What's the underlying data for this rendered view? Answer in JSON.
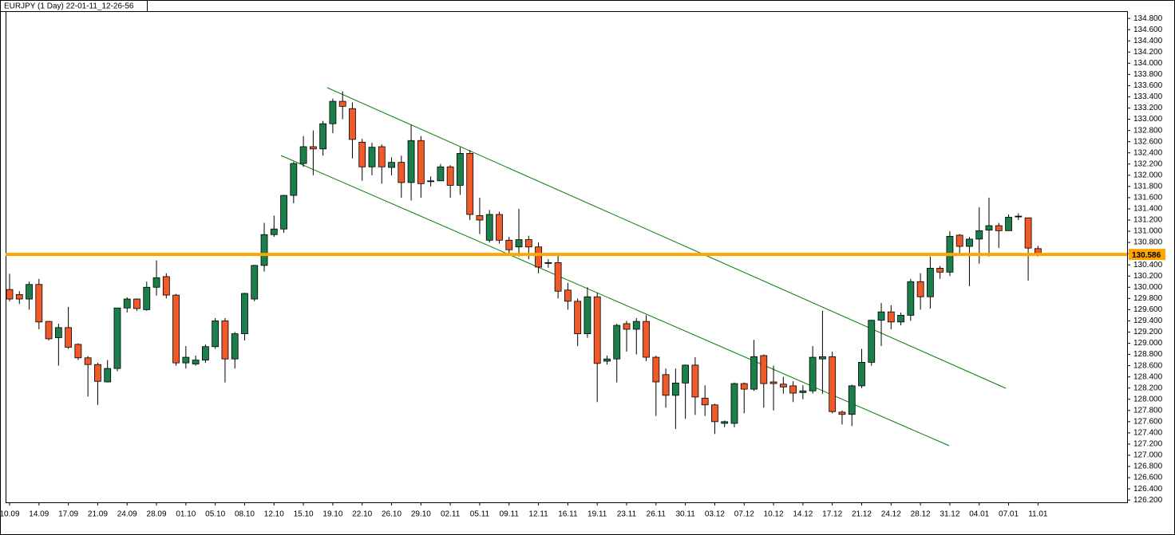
{
  "chart_data": {
    "type": "candlestick",
    "title": "EURJPY (1 Day) 22-01-11_12-26-56",
    "categories": [
      "10.09",
      null,
      null,
      "14.09",
      null,
      null,
      "17.09",
      null,
      null,
      "21.09",
      null,
      null,
      "24.09",
      null,
      null,
      "28.09",
      null,
      null,
      "01.10",
      null,
      null,
      "05.10",
      null,
      null,
      "08.10",
      null,
      null,
      "12.10",
      null,
      null,
      "15.10",
      null,
      null,
      "19.10",
      null,
      null,
      "22.10",
      null,
      null,
      "26.10",
      null,
      null,
      "29.10",
      null,
      null,
      "02.11",
      null,
      null,
      "05.11",
      null,
      null,
      "09.11",
      null,
      null,
      "12.11",
      null,
      null,
      "16.11",
      null,
      null,
      "19.11",
      null,
      null,
      "23.11",
      null,
      null,
      "26.11",
      null,
      null,
      "30.11",
      null,
      null,
      "03.12",
      null,
      null,
      "07.12",
      null,
      null,
      "10.12",
      null,
      null,
      "14.12",
      null,
      null,
      "17.12",
      null,
      null,
      "21.12",
      null,
      null,
      "24.12",
      null,
      null,
      "28.12",
      null,
      null,
      "31.12",
      null,
      null,
      "04.01",
      null,
      null,
      "07.01",
      null,
      null,
      "11.01"
    ],
    "open": [
      129.96,
      129.87,
      129.79,
      130.05,
      129.39,
      129.1,
      129.28,
      128.98,
      128.74,
      128.62,
      128.31,
      128.55,
      129.63,
      129.79,
      129.6,
      130.0,
      130.19,
      129.86,
      128.65,
      128.63,
      128.7,
      128.94,
      129.4,
      128.72,
      129.17,
      129.79,
      130.39,
      130.94,
      131.04,
      131.64,
      132.21,
      132.51,
      132.47,
      132.92,
      133.32,
      133.19,
      132.59,
      132.15,
      132.51,
      132.14,
      132.23,
      131.87,
      132.62,
      131.9,
      131.9,
      132.15,
      131.82,
      132.39,
      131.28,
      130.84,
      131.3,
      130.84,
      130.72,
      130.85,
      130.72,
      130.44,
      130.44,
      129.95,
      129.75,
      129.17,
      129.83,
      128.68,
      128.72,
      129.35,
      129.25,
      129.39,
      128.75,
      128.44,
      128.07,
      128.29,
      128.61,
      128.02,
      127.9,
      127.57,
      127.57,
      128.28,
      128.18,
      128.78,
      128.31,
      128.27,
      128.24,
      128.12,
      128.15,
      128.72,
      128.76,
      127.77,
      127.73,
      128.24,
      128.66,
      129.41,
      129.56,
      129.38,
      129.5,
      130.1,
      129.83,
      130.34,
      130.27,
      130.93,
      130.73,
      130.86,
      131.02,
      131.1,
      131.01,
      131.27,
      131.24,
      130.69
    ],
    "high": [
      130.24,
      129.93,
      130.1,
      130.15,
      129.4,
      129.35,
      129.65,
      129.0,
      128.77,
      128.65,
      128.7,
      129.63,
      129.82,
      129.8,
      130.1,
      130.48,
      130.25,
      129.88,
      128.95,
      128.78,
      128.98,
      129.45,
      129.45,
      129.2,
      129.9,
      130.4,
      131.15,
      131.28,
      131.65,
      132.24,
      132.7,
      132.8,
      132.97,
      133.37,
      133.5,
      133.3,
      132.65,
      132.58,
      132.55,
      132.32,
      132.35,
      132.9,
      132.7,
      131.98,
      132.2,
      132.18,
      132.5,
      132.45,
      131.6,
      131.38,
      131.35,
      130.9,
      131.4,
      130.92,
      130.8,
      130.5,
      130.6,
      130.08,
      129.8,
      130.0,
      129.9,
      128.78,
      129.35,
      129.4,
      129.45,
      129.5,
      128.78,
      128.55,
      128.55,
      128.62,
      128.75,
      128.25,
      127.92,
      127.62,
      128.3,
      128.3,
      129.06,
      128.8,
      128.6,
      128.4,
      128.32,
      128.25,
      128.95,
      129.58,
      128.85,
      127.8,
      128.26,
      128.9,
      129.42,
      129.72,
      129.68,
      129.55,
      130.15,
      130.25,
      130.55,
      130.38,
      131.0,
      130.95,
      130.9,
      131.43,
      131.6,
      131.15,
      131.3,
      131.32,
      131.24,
      130.74
    ],
    "low": [
      129.75,
      129.7,
      129.6,
      129.25,
      129.05,
      128.6,
      128.9,
      128.7,
      128.05,
      127.9,
      128.3,
      128.5,
      129.55,
      129.58,
      129.58,
      129.85,
      129.8,
      128.6,
      128.55,
      128.6,
      128.65,
      128.9,
      128.3,
      128.55,
      129.05,
      129.75,
      130.28,
      130.9,
      130.97,
      131.5,
      132.15,
      132.0,
      132.35,
      132.75,
      133.0,
      132.3,
      131.9,
      132.0,
      131.85,
      132.0,
      131.6,
      131.55,
      131.6,
      131.8,
      131.9,
      131.6,
      131.65,
      131.2,
      130.95,
      130.8,
      130.78,
      130.6,
      130.55,
      130.5,
      130.25,
      130.35,
      129.8,
      129.6,
      128.95,
      129.1,
      127.95,
      128.62,
      128.3,
      128.85,
      128.8,
      128.68,
      127.7,
      127.85,
      127.47,
      127.65,
      127.72,
      127.7,
      127.38,
      127.5,
      127.5,
      127.75,
      128.15,
      127.85,
      127.8,
      128.1,
      127.95,
      128.0,
      128.1,
      128.1,
      127.75,
      127.55,
      127.52,
      128.2,
      128.6,
      128.95,
      129.25,
      129.32,
      129.4,
      129.6,
      129.62,
      130.15,
      130.2,
      130.6,
      130.02,
      130.42,
      130.55,
      130.7,
      131.02,
      131.2,
      130.12,
      130.55
    ],
    "close": [
      129.79,
      129.79,
      130.05,
      129.38,
      129.08,
      129.28,
      128.93,
      128.74,
      128.62,
      128.32,
      128.55,
      129.63,
      129.79,
      129.62,
      130.0,
      130.17,
      129.86,
      128.65,
      128.75,
      128.7,
      128.94,
      129.4,
      128.72,
      129.17,
      129.89,
      130.39,
      130.94,
      131.04,
      131.64,
      132.21,
      132.51,
      132.47,
      132.92,
      133.32,
      133.23,
      132.64,
      132.15,
      132.5,
      132.15,
      132.23,
      131.87,
      132.62,
      131.85,
      131.9,
      132.15,
      131.82,
      132.39,
      131.3,
      131.2,
      131.3,
      130.84,
      130.67,
      130.85,
      130.72,
      130.36,
      130.44,
      129.93,
      129.75,
      129.17,
      129.83,
      128.64,
      128.72,
      129.32,
      129.25,
      129.39,
      128.75,
      128.31,
      128.07,
      128.29,
      128.61,
      128.04,
      127.9,
      127.6,
      127.6,
      128.28,
      128.18,
      128.76,
      128.28,
      128.28,
      128.22,
      128.11,
      128.15,
      128.75,
      128.76,
      127.78,
      127.73,
      128.24,
      128.66,
      129.41,
      129.56,
      129.38,
      129.5,
      130.1,
      129.83,
      130.34,
      130.27,
      130.91,
      130.73,
      130.86,
      131.01,
      131.1,
      131.01,
      131.25,
      131.27,
      130.7,
      130.6
    ],
    "up_color": "#1b7f4b",
    "down_color": "#f05a28",
    "hline": {
      "value": 130.586,
      "color": "#ffa500"
    },
    "ylim": [
      126.16,
      134.93
    ],
    "yticks": [
      {
        "value": 126.2,
        "label": "126.200"
      },
      {
        "value": 126.4,
        "label": "126.400"
      },
      {
        "value": 126.6,
        "label": "126.600"
      },
      {
        "value": 126.8,
        "label": "126.800"
      },
      {
        "value": 127.0,
        "label": "127.000"
      },
      {
        "value": 127.2,
        "label": "127.200"
      },
      {
        "value": 127.4,
        "label": "127.400"
      },
      {
        "value": 127.6,
        "label": "127.600"
      },
      {
        "value": 127.8,
        "label": "127.800"
      },
      {
        "value": 128.0,
        "label": "128.000"
      },
      {
        "value": 128.2,
        "label": "128.200"
      },
      {
        "value": 128.4,
        "label": "128.400"
      },
      {
        "value": 128.6,
        "label": "128.600"
      },
      {
        "value": 128.8,
        "label": "128.800"
      },
      {
        "value": 129.0,
        "label": "129.000"
      },
      {
        "value": 129.2,
        "label": "129.200"
      },
      {
        "value": 129.4,
        "label": "129.400"
      },
      {
        "value": 129.6,
        "label": "129.600"
      },
      {
        "value": 129.8,
        "label": "129.800"
      },
      {
        "value": 130.0,
        "label": "130.000"
      },
      {
        "value": 130.2,
        "label": "130.200"
      },
      {
        "value": 130.4,
        "label": "130.400"
      },
      {
        "value": 130.6,
        "label": "130.600"
      },
      {
        "value": 130.8,
        "label": "130.800"
      },
      {
        "value": 131.0,
        "label": "131.000"
      },
      {
        "value": 131.2,
        "label": "131.200"
      },
      {
        "value": 131.4,
        "label": "131.400"
      },
      {
        "value": 131.6,
        "label": "131.600"
      },
      {
        "value": 131.8,
        "label": "131.800"
      },
      {
        "value": 132.0,
        "label": "132.000"
      },
      {
        "value": 132.2,
        "label": "132.200"
      },
      {
        "value": 132.4,
        "label": "132.400"
      },
      {
        "value": 132.6,
        "label": "132.600"
      },
      {
        "value": 132.8,
        "label": "132.800"
      },
      {
        "value": 133.0,
        "label": "133.000"
      },
      {
        "value": 133.2,
        "label": "133.200"
      },
      {
        "value": 133.4,
        "label": "133.400"
      },
      {
        "value": 133.6,
        "label": "133.600"
      },
      {
        "value": 133.8,
        "label": "133.800"
      },
      {
        "value": 134.0,
        "label": "134.000"
      },
      {
        "value": 134.2,
        "label": "134.200"
      },
      {
        "value": 134.4,
        "label": "134.400"
      },
      {
        "value": 134.6,
        "label": "134.600"
      },
      {
        "value": 134.8,
        "label": "134.800"
      }
    ]
  }
}
